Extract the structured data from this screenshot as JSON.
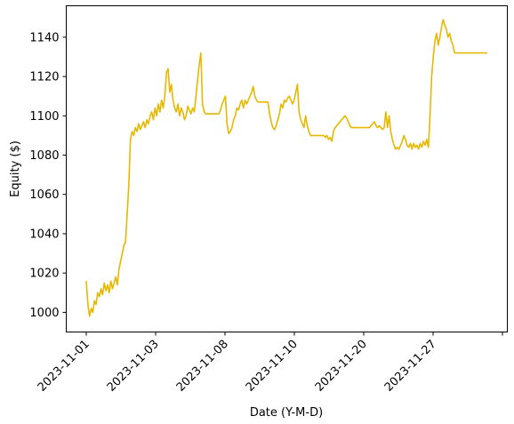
{
  "chart_data": {
    "type": "line",
    "title": "",
    "xlabel": "Date (Y-M-D)",
    "ylabel": "Equity ($)",
    "ylim": [
      990,
      1156
    ],
    "x_tick_labels": [
      "2023-11-01",
      "2023-11-03",
      "2023-11-08",
      "2023-11-10",
      "2023-11-20",
      "2023-11-27"
    ],
    "x_tick_rotation": 45,
    "y_ticks": [
      1000,
      1020,
      1040,
      1060,
      1080,
      1100,
      1120,
      1140
    ],
    "grid": false,
    "legend": "none",
    "series": [
      {
        "color": "#e6b800",
        "values": [
          1016,
          1004,
          998,
          1002,
          1000,
          1006,
          1004,
          1010,
          1008,
          1012,
          1009,
          1015,
          1011,
          1014,
          1010,
          1016,
          1012,
          1015,
          1018,
          1014,
          1022,
          1026,
          1030,
          1034,
          1036,
          1050,
          1065,
          1088,
          1092,
          1090,
          1094,
          1092,
          1096,
          1093,
          1095,
          1097,
          1094,
          1098,
          1096,
          1100,
          1102,
          1098,
          1104,
          1100,
          1106,
          1102,
          1108,
          1104,
          1110,
          1122,
          1124,
          1112,
          1116,
          1108,
          1104,
          1102,
          1106,
          1100,
          1104,
          1102,
          1098,
          1100,
          1105,
          1103,
          1101,
          1104,
          1102,
          1110,
          1118,
          1126,
          1132,
          1106,
          1102,
          1101,
          1101,
          1101,
          1101,
          1101,
          1101,
          1101,
          1101,
          1101,
          1103,
          1106,
          1108,
          1110,
          1096,
          1091,
          1092,
          1094,
          1098,
          1100,
          1104,
          1103,
          1106,
          1108,
          1104,
          1108,
          1106,
          1108,
          1110,
          1112,
          1115,
          1110,
          1108,
          1107,
          1107,
          1107,
          1107,
          1107,
          1107,
          1107,
          1101,
          1097,
          1094,
          1093,
          1095,
          1098,
          1101,
          1106,
          1104,
          1108,
          1107,
          1109,
          1110,
          1108,
          1106,
          1108,
          1112,
          1116,
          1102,
          1098,
          1096,
          1094,
          1100,
          1095,
          1092,
          1090,
          1090,
          1090,
          1090,
          1090,
          1090,
          1090,
          1090,
          1090,
          1089,
          1090,
          1088,
          1089,
          1087,
          1092,
          1094,
          1095,
          1096,
          1097,
          1098,
          1099,
          1100,
          1099,
          1097,
          1095,
          1094,
          1094,
          1094,
          1094,
          1094,
          1094,
          1094,
          1094,
          1094,
          1094,
          1094,
          1094,
          1095,
          1096,
          1097,
          1095,
          1094,
          1095,
          1094,
          1093,
          1094,
          1102,
          1094,
          1100,
          1092,
          1088,
          1085,
          1083,
          1084,
          1083,
          1085,
          1087,
          1090,
          1088,
          1085,
          1084,
          1086,
          1083,
          1086,
          1084,
          1085,
          1083,
          1086,
          1084,
          1087,
          1085,
          1088,
          1084,
          1100,
          1120,
          1130,
          1138,
          1142,
          1136,
          1140,
          1145,
          1149,
          1146,
          1144,
          1140,
          1142,
          1138,
          1136,
          1132,
          1132,
          1132,
          1132,
          1132,
          1132,
          1132,
          1132,
          1132,
          1132,
          1132,
          1132,
          1132,
          1132,
          1132,
          1132,
          1132,
          1132,
          1132,
          1132,
          1132
        ]
      }
    ]
  }
}
